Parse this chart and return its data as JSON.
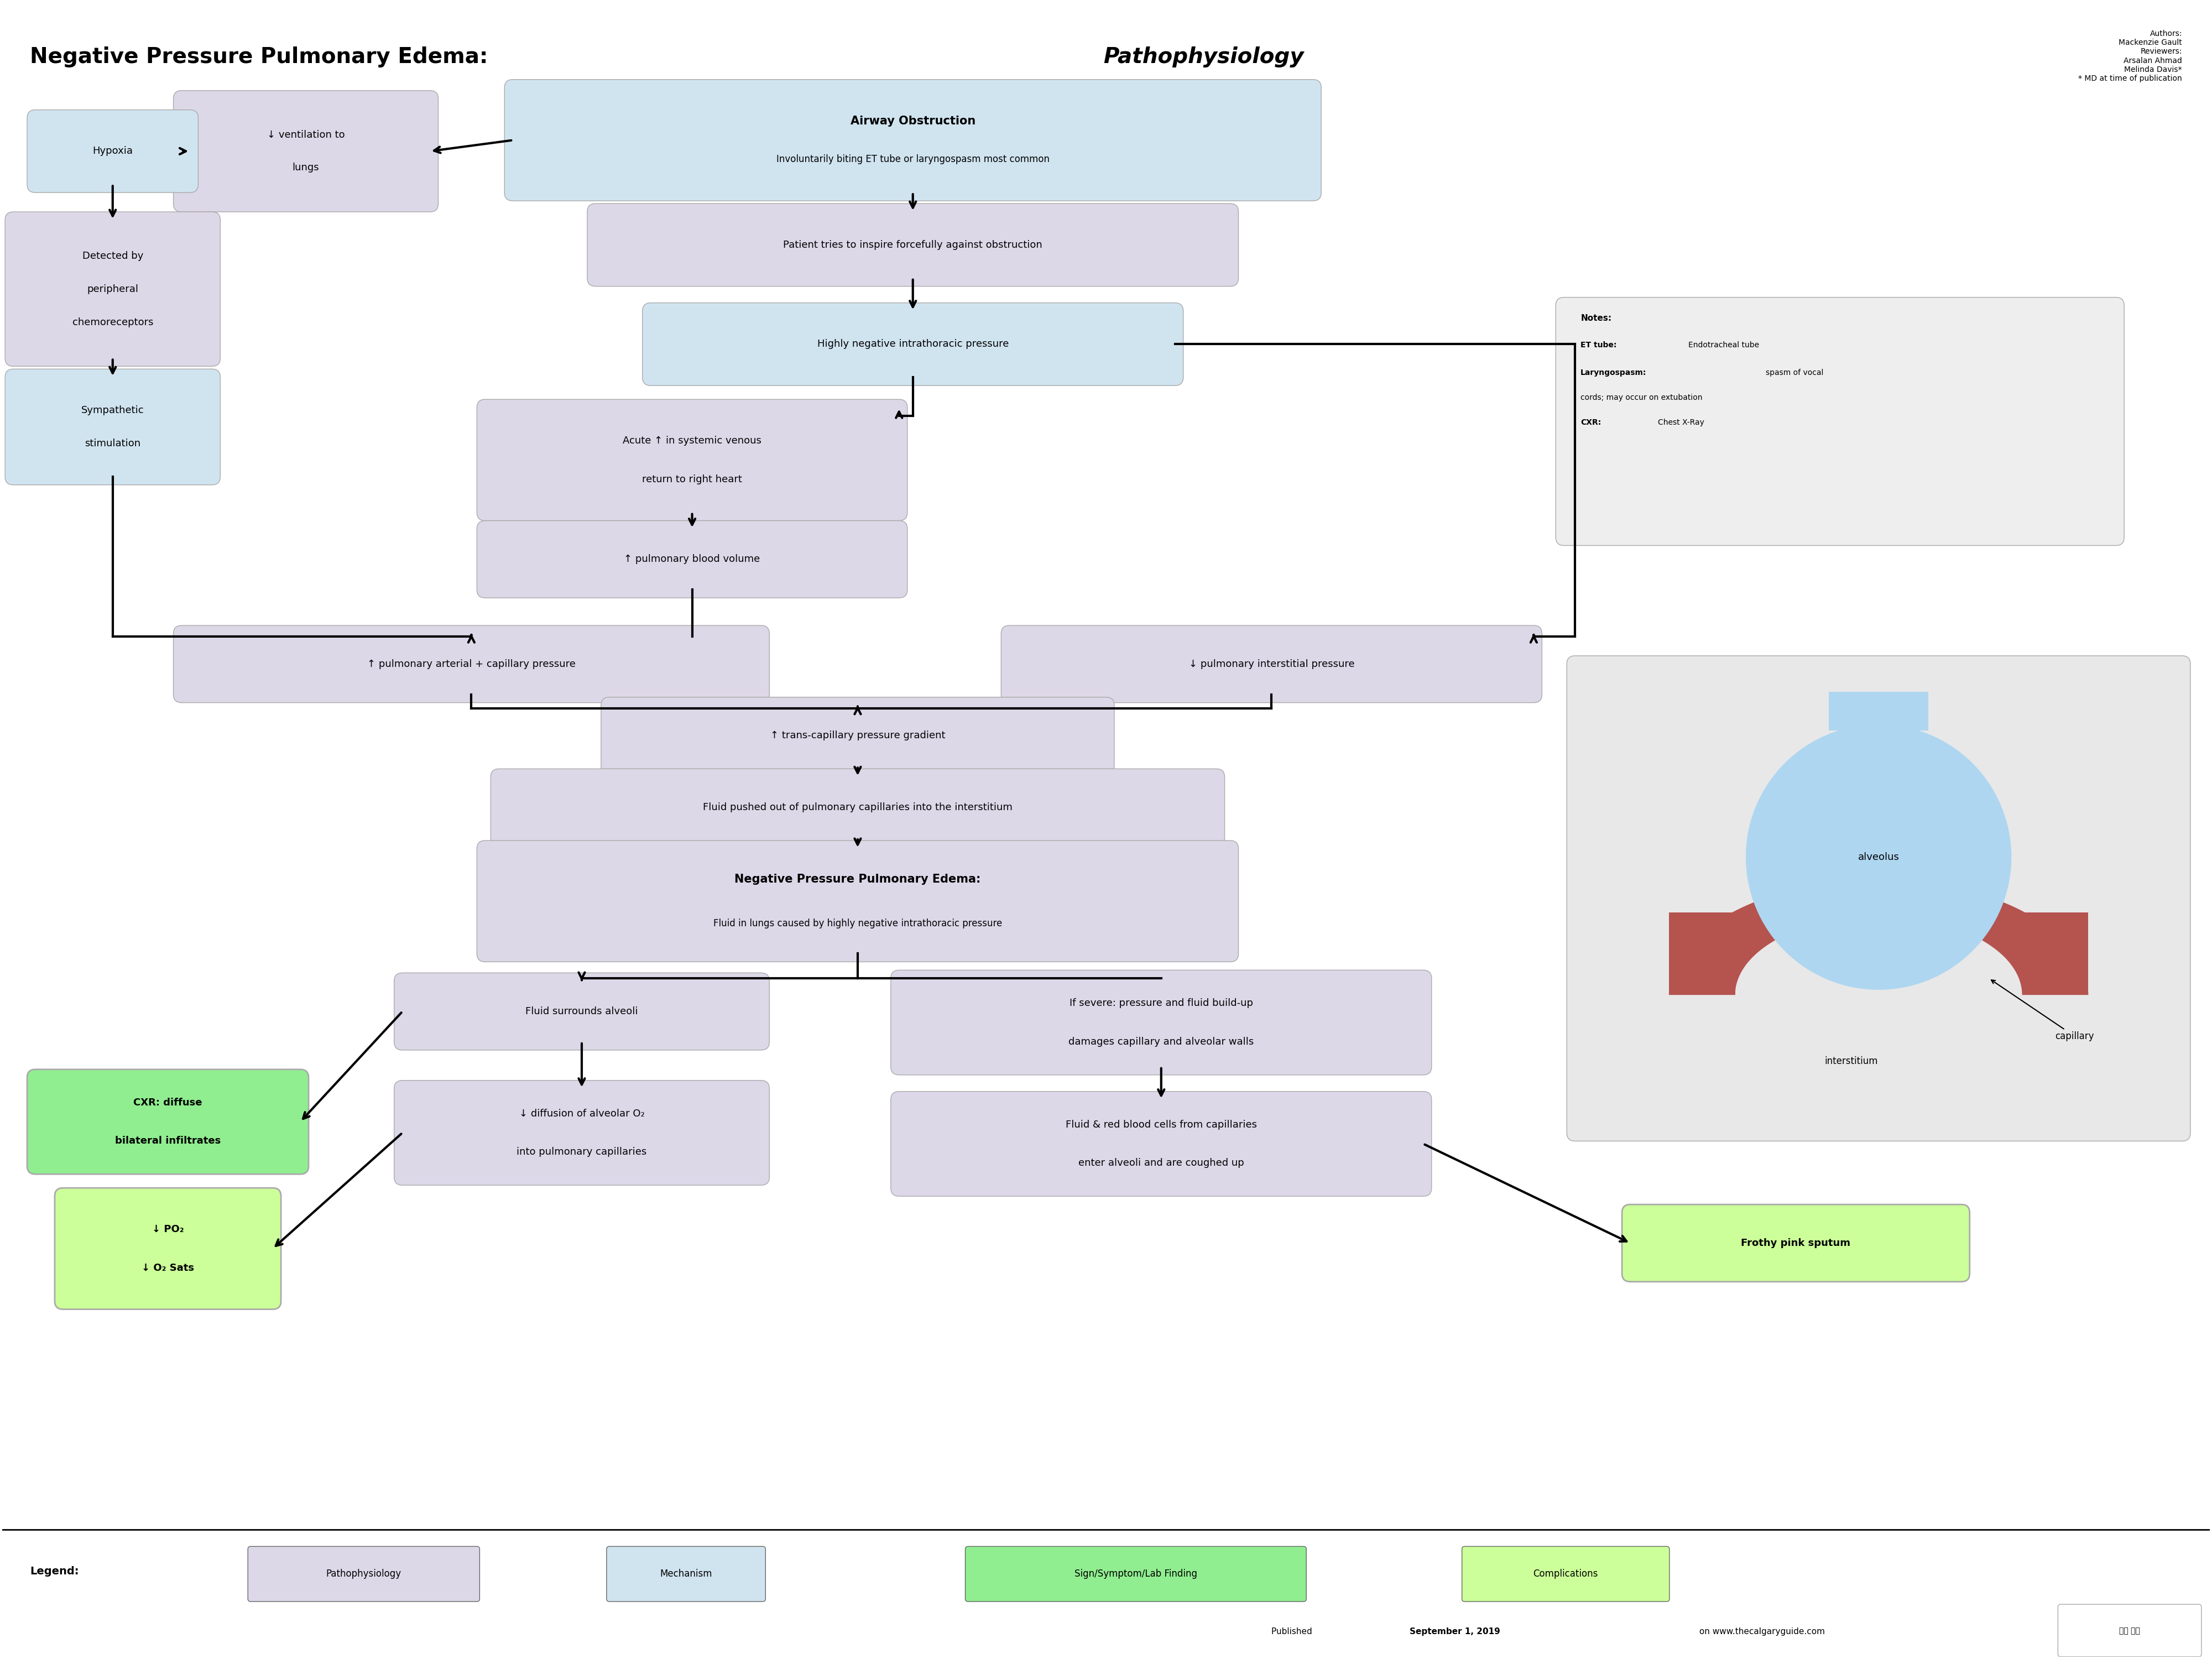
{
  "title_normal": "Negative Pressure Pulmonary Edema: ",
  "title_italic": "Pathophysiology",
  "bg_color": "#ffffff",
  "box_color_light_purple": "#ddd8e8",
  "box_color_light_blue": "#d0e4f0",
  "box_color_green": "#90ee90",
  "box_color_yellow_green": "#ccff99",
  "box_color_notes": "#eeeeee",
  "box_color_diagram": "#e8e8e8",
  "authors_text": "Authors:\nMackenzie Gault\nReviewers:\nArsalan Ahmad\nMelinda Davis*\n* MD at time of publication",
  "legend_items": [
    {
      "label": "Pathophysiology",
      "color": "#ddd8e8"
    },
    {
      "label": "Mechanism",
      "color": "#d0e4f0"
    },
    {
      "label": "Sign/Symptom/Lab Finding",
      "color": "#90ee90"
    },
    {
      "label": "Complications",
      "color": "#ccff99"
    }
  ]
}
